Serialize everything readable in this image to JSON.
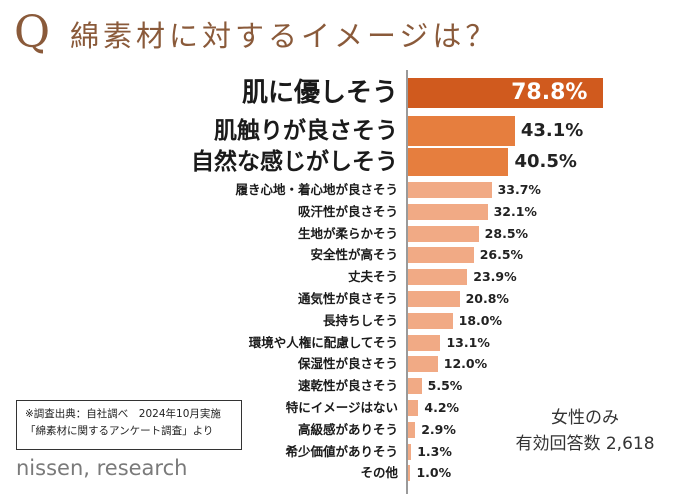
{
  "header": {
    "q_mark": "Q",
    "title": "綿素材に対するイメージは？"
  },
  "chart_data": {
    "type": "bar",
    "orientation": "horizontal",
    "title": "綿素材に対するイメージは？",
    "unit": "%",
    "xlim": [
      0,
      100
    ],
    "categories": [
      "肌に優しそう",
      "肌触りが良さそう",
      "自然な感じがしそう",
      "履き心地・着心地が良さそう",
      "吸汗性が良さそう",
      "生地が柔らかそう",
      "安全性が高そう",
      "丈夫そう",
      "通気性が良さそう",
      "長持ちしそう",
      "環境や人権に配慮してそう",
      "保湿性が良さそう",
      "速乾性が良さそう",
      "特にイメージはない",
      "高級感がありそう",
      "希少価値がありそう",
      "その他"
    ],
    "values": [
      78.8,
      43.1,
      40.5,
      33.7,
      32.1,
      28.5,
      26.5,
      23.9,
      20.8,
      18.0,
      13.1,
      12.0,
      5.5,
      4.2,
      2.9,
      1.3,
      1.0
    ],
    "value_labels": [
      "78.8%",
      "43.1%",
      "40.5%",
      "33.7%",
      "32.1%",
      "28.5%",
      "26.5%",
      "23.9%",
      "20.8%",
      "18.0%",
      "13.1%",
      "12.0%",
      "5.5%",
      "4.2%",
      "2.9%",
      "1.3%",
      "1.0%"
    ],
    "highlight_count": 3,
    "colors": {
      "top": "#d05a1e",
      "mid": "#e67e3e",
      "rest": "#f1aa85",
      "top_label": "#ffffff",
      "axis": "#9a9a9a"
    }
  },
  "note": {
    "line1": "※調査出典：自社調べ　2024年10月実施",
    "line2": "「綿素材に関するアンケート調査」より"
  },
  "sample": {
    "line1": "女性のみ",
    "line2": "有効回答数 2,618"
  },
  "brand": "nissen, research"
}
